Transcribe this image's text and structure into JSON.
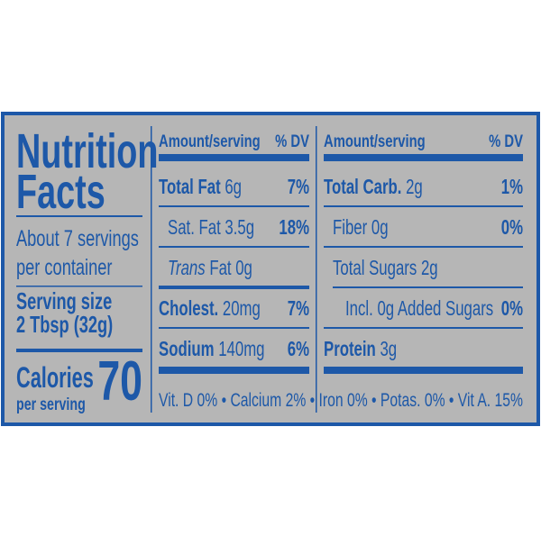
{
  "title": {
    "line1": "Nutrition",
    "line2": "Facts"
  },
  "servings": {
    "line1": "About 7 servings",
    "line2": "per container"
  },
  "serving_size": {
    "label": "Serving size",
    "value": "2 Tbsp (32g)"
  },
  "calories": {
    "label": "Calories",
    "sublabel": "per serving",
    "value": 70
  },
  "columns": [
    {
      "header": "Amount/serving",
      "dv_header": "% DV",
      "rows": [
        {
          "name": "Total Fat",
          "text": "6g",
          "dv": "7%"
        },
        {
          "text": "Sat. Fat 3.5g",
          "dv": "18%",
          "indent": true
        },
        {
          "italic": "Trans",
          "text": "Fat 0g",
          "indent": true
        },
        {
          "name": "Cholest.",
          "text": "20mg",
          "dv": "7%"
        },
        {
          "name": "Sodium",
          "text": "140mg",
          "dv": "6%"
        }
      ]
    },
    {
      "header": "Amount/serving",
      "dv_header": "% DV",
      "rows": [
        {
          "name": "Total Carb.",
          "text": "2g",
          "dv": "1%"
        },
        {
          "text": "Fiber 0g",
          "dv": "0%",
          "indent": true
        },
        {
          "text": "Total Sugars 2g",
          "indent": true
        },
        {
          "text": "Incl. 0g Added Sugars",
          "dv": "0%",
          "indent": true,
          "deep": true
        },
        {
          "name": "Protein",
          "text": "3g"
        }
      ]
    }
  ],
  "vitamins": "Vit. D 0% • Calcium 2% • Iron 0% • Potas. 0% • Vit A. 15%"
}
